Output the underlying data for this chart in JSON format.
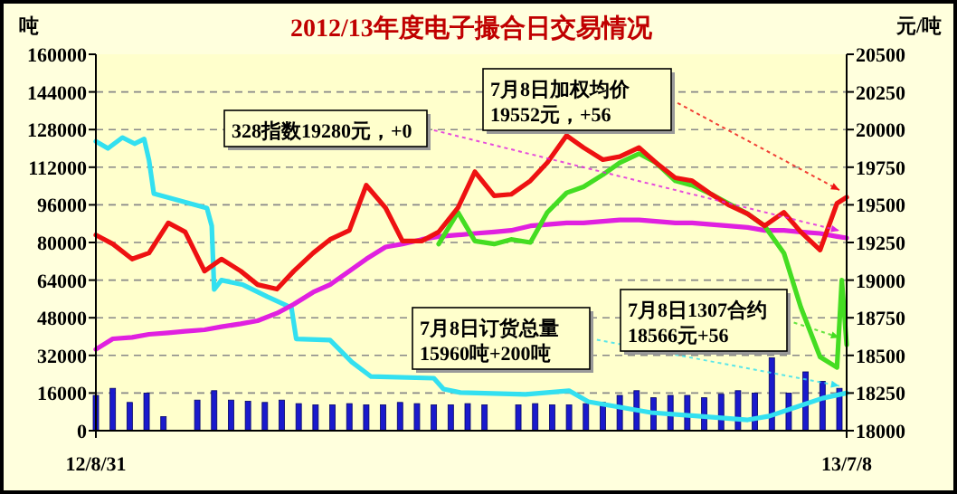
{
  "chart_data": {
    "type": "line",
    "title": "2012/13年度电子撮合日交易情况",
    "ylabel": "吨",
    "y2label": "元/吨",
    "xlim": [
      "2012-08-31",
      "2013-07-08"
    ],
    "xticks": [
      {
        "value": "2012-08-31",
        "label": "12/8/31"
      },
      {
        "value": "2013-07-08",
        "label": "13/7/8"
      }
    ],
    "ylim": [
      0,
      160000
    ],
    "yticks": [
      0,
      16000,
      32000,
      48000,
      64000,
      80000,
      96000,
      112000,
      128000,
      144000,
      160000
    ],
    "y2lim": [
      18000,
      20500
    ],
    "y2ticks": [
      18000,
      18250,
      18500,
      18750,
      19000,
      19250,
      19500,
      19750,
      20000,
      20250,
      20500
    ],
    "grid": "y",
    "series": [
      {
        "type": "bar",
        "color": "#1a1acc",
        "x": [
          "2012-08-31",
          "2012-09-07",
          "2012-09-14",
          "2012-09-21",
          "2012-09-28",
          "2012-10-12",
          "2012-10-19",
          "2012-10-26",
          "2012-11-02",
          "2012-11-09",
          "2012-11-16",
          "2012-11-23",
          "2012-11-30",
          "2012-12-07",
          "2012-12-14",
          "2012-12-21",
          "2012-12-28",
          "2013-01-04",
          "2013-01-11",
          "2013-01-18",
          "2013-01-25",
          "2013-02-01",
          "2013-02-08",
          "2013-02-22",
          "2013-03-01",
          "2013-03-08",
          "2013-03-15",
          "2013-03-22",
          "2013-03-29",
          "2013-04-05",
          "2013-04-12",
          "2013-04-19",
          "2013-04-26",
          "2013-05-03",
          "2013-05-10",
          "2013-05-17",
          "2013-05-24",
          "2013-05-31",
          "2013-06-07",
          "2013-06-14",
          "2013-06-21",
          "2013-06-28",
          "2013-07-05"
        ],
        "values": [
          15000,
          18000,
          12000,
          16000,
          6000,
          13000,
          17000,
          13000,
          12500,
          12000,
          13000,
          11500,
          11000,
          11000,
          11500,
          11000,
          11000,
          12000,
          11500,
          11000,
          11000,
          11500,
          11000,
          11000,
          11500,
          11000,
          11000,
          11500,
          12000,
          15000,
          17000,
          14000,
          15000,
          15000,
          14000,
          15500,
          17000,
          16000,
          31000,
          16000,
          25000,
          21000,
          18000
        ]
      },
      {
        "color": "#33e0f0",
        "x": [
          "2012-08-31",
          "2012-09-05",
          "2012-09-11",
          "2012-09-16",
          "2012-09-20",
          "2012-09-22",
          "2012-09-24",
          "2012-10-16",
          "2012-10-18",
          "2012-10-19",
          "2012-10-22",
          "2012-10-31",
          "2012-11-10",
          "2012-11-20",
          "2012-11-22",
          "2012-12-06",
          "2012-12-15",
          "2012-12-23",
          "2013-01-18",
          "2013-01-22",
          "2013-01-29",
          "2013-02-25",
          "2013-03-15",
          "2013-03-23",
          "2013-04-18",
          "2013-05-28",
          "2013-06-06",
          "2013-06-17",
          "2013-06-28",
          "2013-07-08"
        ],
        "values": [
          123000,
          120000,
          124600,
          122000,
          124000,
          115000,
          100800,
          94600,
          87000,
          60000,
          64000,
          62000,
          57000,
          52300,
          39000,
          38500,
          29200,
          23000,
          22300,
          17700,
          16200,
          15400,
          17000,
          12300,
          7700,
          4600,
          6200,
          10000,
          13800,
          16000
        ]
      },
      {
        "axis": "y2",
        "color": "#e020e0",
        "x": [
          "2012-08-31",
          "2012-09-07",
          "2012-09-15",
          "2012-09-22",
          "2012-09-30",
          "2012-10-07",
          "2012-10-15",
          "2012-10-22",
          "2012-10-30",
          "2012-11-06",
          "2012-11-14",
          "2012-11-21",
          "2012-11-29",
          "2012-12-06",
          "2012-12-14",
          "2012-12-21",
          "2012-12-29",
          "2013-01-05",
          "2013-01-13",
          "2013-01-20",
          "2013-01-28",
          "2013-02-04",
          "2013-02-12",
          "2013-02-19",
          "2013-02-27",
          "2013-03-06",
          "2013-03-14",
          "2013-03-21",
          "2013-03-29",
          "2013-04-05",
          "2013-04-13",
          "2013-04-20",
          "2013-04-28",
          "2013-05-05",
          "2013-05-13",
          "2013-05-20",
          "2013-05-28",
          "2013-06-04",
          "2013-06-12",
          "2013-06-19",
          "2013-06-27",
          "2013-07-04",
          "2013-07-08"
        ],
        "values": [
          18540,
          18610,
          18620,
          18640,
          18650,
          18660,
          18670,
          18690,
          18710,
          18730,
          18780,
          18840,
          18920,
          18970,
          19060,
          19140,
          19220,
          19240,
          19270,
          19290,
          19300,
          19310,
          19320,
          19330,
          19360,
          19370,
          19380,
          19380,
          19390,
          19400,
          19400,
          19390,
          19380,
          19380,
          19370,
          19360,
          19350,
          19330,
          19330,
          19320,
          19310,
          19290,
          19280
        ]
      },
      {
        "axis": "y2",
        "color": "#44dd22",
        "x": [
          "2013-01-20",
          "2013-01-28",
          "2013-02-04",
          "2013-02-12",
          "2013-02-19",
          "2013-02-27",
          "2013-03-06",
          "2013-03-14",
          "2013-03-21",
          "2013-03-29",
          "2013-04-05",
          "2013-04-13",
          "2013-04-20",
          "2013-04-28",
          "2013-05-05",
          "2013-05-13",
          "2013-05-20",
          "2013-05-28",
          "2013-06-04",
          "2013-06-12",
          "2013-06-19",
          "2013-06-27",
          "2013-07-04",
          "2013-07-06",
          "2013-07-08"
        ],
        "values": [
          19240,
          19450,
          19260,
          19240,
          19270,
          19250,
          19450,
          19580,
          19620,
          19700,
          19780,
          19840,
          19780,
          19660,
          19630,
          19570,
          19510,
          19440,
          19360,
          19180,
          18820,
          18490,
          18420,
          19000,
          18570
        ]
      },
      {
        "axis": "y2",
        "color": "#ee1111",
        "x": [
          "2012-08-31",
          "2012-09-07",
          "2012-09-15",
          "2012-09-22",
          "2012-09-30",
          "2012-10-07",
          "2012-10-15",
          "2012-10-22",
          "2012-10-30",
          "2012-11-06",
          "2012-11-14",
          "2012-11-21",
          "2012-11-29",
          "2012-12-06",
          "2012-12-14",
          "2012-12-21",
          "2012-12-29",
          "2013-01-05",
          "2013-01-13",
          "2013-01-20",
          "2013-01-28",
          "2013-02-04",
          "2013-02-12",
          "2013-02-19",
          "2013-02-27",
          "2013-03-06",
          "2013-03-14",
          "2013-03-21",
          "2013-03-29",
          "2013-04-05",
          "2013-04-13",
          "2013-04-20",
          "2013-04-28",
          "2013-05-05",
          "2013-05-13",
          "2013-05-20",
          "2013-05-28",
          "2013-06-04",
          "2013-06-12",
          "2013-06-19",
          "2013-06-27",
          "2013-07-04",
          "2013-07-08"
        ],
        "values": [
          19300,
          19240,
          19140,
          19180,
          19380,
          19320,
          19060,
          19140,
          19060,
          18970,
          18940,
          19060,
          19180,
          19270,
          19330,
          19630,
          19480,
          19260,
          19260,
          19320,
          19480,
          19720,
          19560,
          19570,
          19660,
          19780,
          19960,
          19880,
          19800,
          19820,
          19880,
          19780,
          19680,
          19660,
          19570,
          19500,
          19440,
          19360,
          19450,
          19320,
          19200,
          19510,
          19550
        ]
      }
    ],
    "annotations": [
      "328指数19280元，+0",
      "7月8日加权均价\n19552元，+56",
      "7月8日订货总量\n15960吨+200吨",
      "7月8日1307合约\n18566元+56"
    ]
  }
}
